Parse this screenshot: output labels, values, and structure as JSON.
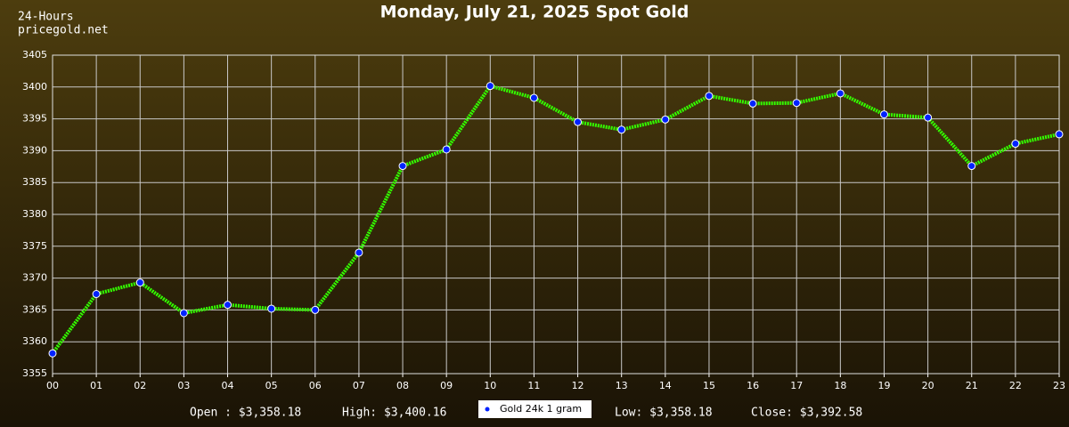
{
  "chart_data": {
    "type": "line",
    "title": "Monday, July 21, 2025 Spot Gold",
    "top_left": [
      "24-Hours",
      "pricegold.net"
    ],
    "stats": [
      "Open : $3,358.18",
      "High: $3,400.16",
      "Low: $3,358.18",
      "Close: $3,392.58"
    ],
    "categories": [
      "00",
      "01",
      "02",
      "03",
      "04",
      "05",
      "06",
      "07",
      "08",
      "09",
      "10",
      "11",
      "12",
      "13",
      "14",
      "15",
      "16",
      "17",
      "18",
      "19",
      "20",
      "21",
      "22",
      "23"
    ],
    "series": [
      {
        "name": "Gold 24k 1 gram",
        "color": "#33ff00",
        "marker_color": "#0022ff",
        "values": [
          3358.18,
          3367.5,
          3369.3,
          3364.5,
          3365.8,
          3365.2,
          3365.0,
          3374.0,
          3387.6,
          3390.2,
          3400.16,
          3398.3,
          3394.5,
          3393.3,
          3394.9,
          3398.6,
          3397.4,
          3397.5,
          3399.0,
          3395.7,
          3395.2,
          3387.6,
          3391.1,
          3392.58
        ]
      }
    ],
    "ylim": [
      3355,
      3405
    ],
    "yticks": [
      3355,
      3360,
      3365,
      3370,
      3375,
      3380,
      3385,
      3390,
      3395,
      3400,
      3405
    ],
    "grid": true
  }
}
